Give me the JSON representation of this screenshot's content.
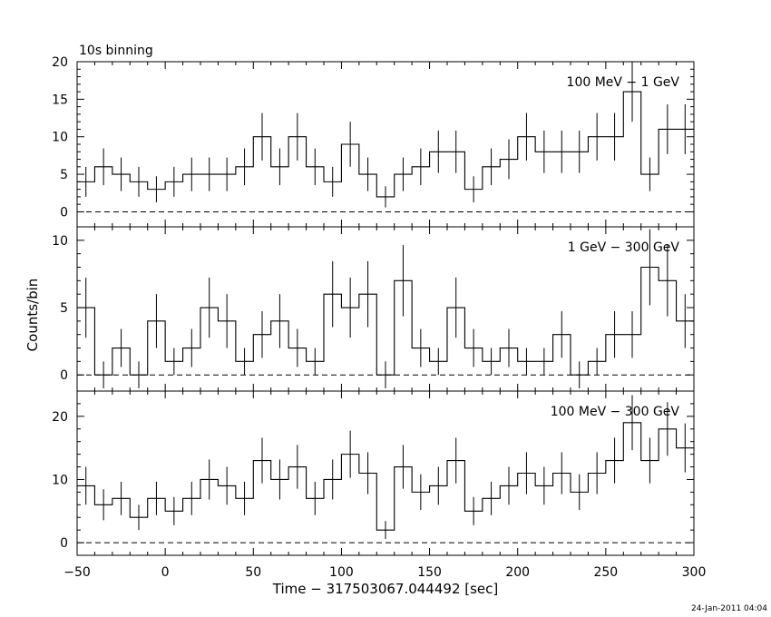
{
  "header": {
    "binning_label": "10s binning"
  },
  "footer": {
    "timestamp": "24-Jan-2011 04:04"
  },
  "chart_data": {
    "type": "line",
    "render": "step-histogram-with-errorbars",
    "xlabel": "Time − 317503067.044492 [sec]",
    "ylabel": "Counts/bin",
    "xlim": [
      -50,
      300
    ],
    "xticks": [
      -50,
      0,
      50,
      100,
      150,
      200,
      250,
      300
    ],
    "bin_width": 10,
    "bin_starts": [
      -50,
      -40,
      -30,
      -20,
      -10,
      0,
      10,
      20,
      30,
      40,
      50,
      60,
      70,
      80,
      90,
      100,
      110,
      120,
      130,
      140,
      150,
      160,
      170,
      180,
      190,
      200,
      210,
      220,
      230,
      240,
      250,
      260,
      270,
      280,
      290
    ],
    "panels": [
      {
        "label": "100 MeV − 1 GeV",
        "ylim": [
          -2,
          20
        ],
        "yticks": [
          0,
          5,
          10,
          15,
          20
        ],
        "values": [
          4,
          6,
          5,
          4,
          3,
          4,
          5,
          5,
          5,
          6,
          10,
          6,
          10,
          6,
          4,
          9,
          5,
          2,
          5,
          6,
          8,
          8,
          3,
          6,
          7,
          10,
          8,
          8,
          8,
          10,
          10,
          16,
          5,
          11,
          11
        ]
      },
      {
        "label": "1 GeV − 300 GeV",
        "ylim": [
          -1.2,
          11
        ],
        "yticks": [
          0,
          5,
          10
        ],
        "values": [
          5,
          0,
          2,
          0,
          4,
          1,
          2,
          5,
          4,
          1,
          3,
          4,
          2,
          1,
          6,
          5,
          6,
          0,
          7,
          2,
          1,
          5,
          2,
          1,
          2,
          1,
          1,
          3,
          0,
          1,
          3,
          3,
          8,
          7,
          4
        ]
      },
      {
        "label": "100 MeV − 300 GeV",
        "ylim": [
          -2,
          24
        ],
        "yticks": [
          0,
          10,
          20
        ],
        "values": [
          9,
          6,
          7,
          4,
          7,
          5,
          7,
          10,
          9,
          7,
          13,
          10,
          12,
          7,
          10,
          14,
          11,
          2,
          12,
          8,
          9,
          13,
          5,
          7,
          9,
          11,
          9,
          11,
          8,
          11,
          13,
          19,
          13,
          18,
          15
        ]
      }
    ]
  }
}
